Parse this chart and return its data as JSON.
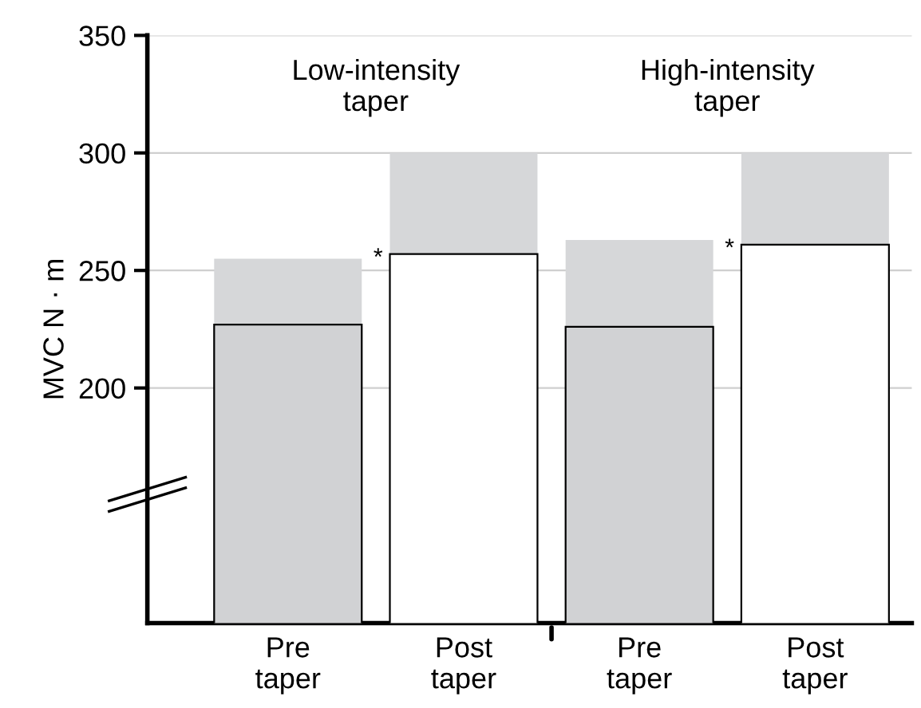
{
  "chart_data": {
    "type": "bar",
    "ylabel": "MVC N · m",
    "categories": [
      "Pre\ntaper",
      "Post\ntaper",
      "Pre\ntaper",
      "Post\ntaper"
    ],
    "values": [
      227,
      257,
      226,
      261
    ],
    "colors": [
      "#d1d2d4",
      "#ffffff",
      "#d1d2d4",
      "#ffffff"
    ],
    "errors": [
      [
        227,
        255
      ],
      [
        257,
        300
      ],
      [
        226,
        263
      ],
      [
        261,
        300
      ]
    ],
    "ylim": [
      100,
      350
    ],
    "yticks": [
      200,
      250,
      300,
      350
    ],
    "grid": "y",
    "annotations": [
      "Low-intensity\ntaper",
      "High-intensity\ntaper",
      "*",
      "*"
    ]
  }
}
